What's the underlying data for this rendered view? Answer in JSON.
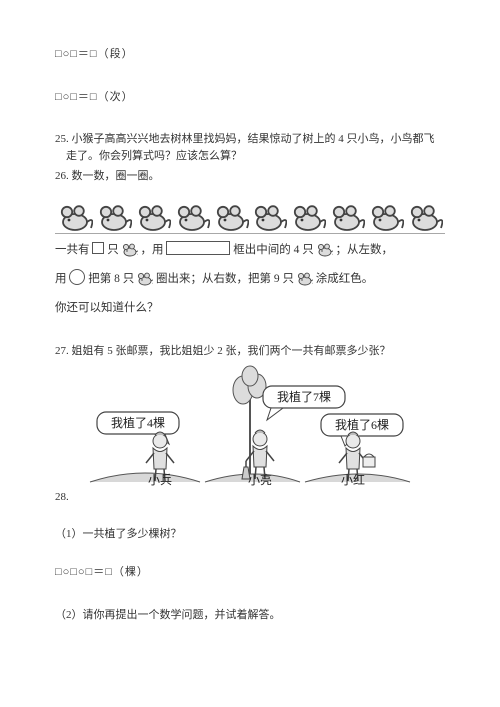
{
  "eq_segment": "□○□＝□（段）",
  "eq_times": "□○□＝□（次）",
  "q25": {
    "num": "25.",
    "text1": "小猴子高高兴兴地去树林里找妈妈，结果惊动了树上的 4 只小鸟，小鸟都飞",
    "text2": "走了。你会列算式吗？应该怎么算？"
  },
  "q26": "26. 数一数，圈一圈。",
  "mouse_block": {
    "count": 10,
    "line1_a": "一共有",
    "line1_b": "只",
    "line1_c": "，用",
    "line1_d": "框出中间的 4 只",
    "line1_e": "；从左数，",
    "line2_a": "用",
    "line2_b": "把第 8 只",
    "line2_c": "圈出来；从右数，把第 9 只",
    "line2_d": "涂成红色。",
    "line3": "你还可以知道什么？"
  },
  "q27": "27. 姐姐有 5 张邮票，我比姐姐少 2 张，我们两个一共有邮票多少张？",
  "planting": {
    "bubble_left": "我植了4棵",
    "bubble_mid": "我植了7棵",
    "bubble_right": "我植了6棵",
    "name_left": "小兵",
    "name_mid": "小亮",
    "name_right": "小红"
  },
  "q28num": "28.",
  "q28_sub1": "（1）一共植了多少棵树？",
  "eq_trees": "□○□○□＝□（棵）",
  "q28_sub2": "（2）请你再提出一个数学问题，并试着解答。",
  "style": {
    "font_size_body": 11,
    "text_color": "#333333",
    "bg": "#ffffff",
    "illustration_stroke": "#444444",
    "illustration_fill": "#dcdcdc"
  }
}
